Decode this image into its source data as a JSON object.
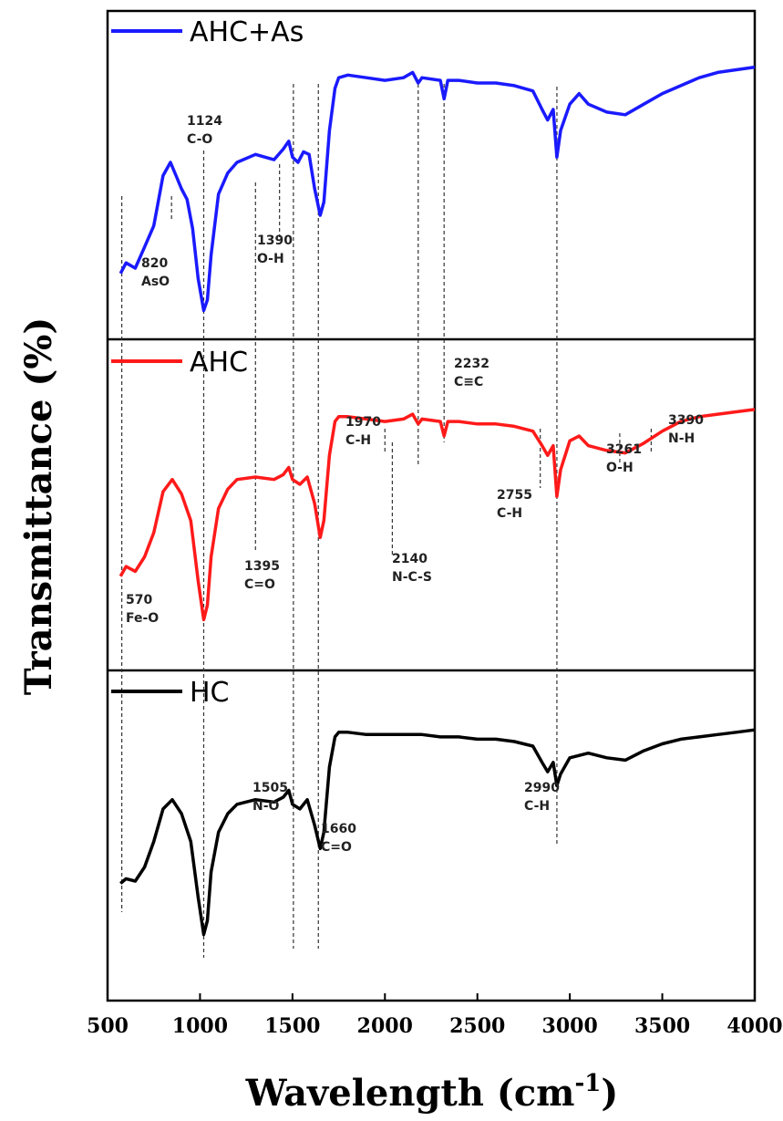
{
  "chart_data": {
    "type": "line",
    "xlabel": "Wavelength (cm",
    "xlabel_sup": "-1",
    "xlabel_end": ")",
    "ylabel": "Transmittance (%)",
    "xlim": [
      500,
      4000
    ],
    "xticks": [
      "500",
      "1000",
      "1500",
      "2000",
      "2500",
      "3000",
      "3500",
      "4000"
    ],
    "panels": [
      {
        "name": "AHC+As",
        "color": "#1a1aff",
        "points": [
          [
            570,
            0.18
          ],
          [
            600,
            0.22
          ],
          [
            650,
            0.2
          ],
          [
            700,
            0.28
          ],
          [
            750,
            0.36
          ],
          [
            800,
            0.55
          ],
          [
            840,
            0.6
          ],
          [
            870,
            0.55
          ],
          [
            900,
            0.5
          ],
          [
            930,
            0.46
          ],
          [
            960,
            0.35
          ],
          [
            990,
            0.16
          ],
          [
            1020,
            0.04
          ],
          [
            1040,
            0.08
          ],
          [
            1060,
            0.25
          ],
          [
            1100,
            0.48
          ],
          [
            1150,
            0.56
          ],
          [
            1200,
            0.6
          ],
          [
            1300,
            0.63
          ],
          [
            1350,
            0.62
          ],
          [
            1400,
            0.61
          ],
          [
            1450,
            0.65
          ],
          [
            1480,
            0.68
          ],
          [
            1500,
            0.62
          ],
          [
            1530,
            0.6
          ],
          [
            1560,
            0.64
          ],
          [
            1590,
            0.63
          ],
          [
            1620,
            0.5
          ],
          [
            1650,
            0.4
          ],
          [
            1670,
            0.45
          ],
          [
            1700,
            0.72
          ],
          [
            1730,
            0.88
          ],
          [
            1750,
            0.92
          ],
          [
            1800,
            0.93
          ],
          [
            1900,
            0.92
          ],
          [
            2000,
            0.91
          ],
          [
            2100,
            0.92
          ],
          [
            2150,
            0.94
          ],
          [
            2180,
            0.9
          ],
          [
            2200,
            0.92
          ],
          [
            2300,
            0.91
          ],
          [
            2320,
            0.84
          ],
          [
            2340,
            0.91
          ],
          [
            2400,
            0.91
          ],
          [
            2500,
            0.9
          ],
          [
            2600,
            0.9
          ],
          [
            2700,
            0.89
          ],
          [
            2800,
            0.87
          ],
          [
            2850,
            0.8
          ],
          [
            2880,
            0.76
          ],
          [
            2910,
            0.8
          ],
          [
            2930,
            0.62
          ],
          [
            2950,
            0.72
          ],
          [
            3000,
            0.82
          ],
          [
            3050,
            0.86
          ],
          [
            3100,
            0.82
          ],
          [
            3200,
            0.79
          ],
          [
            3300,
            0.78
          ],
          [
            3400,
            0.82
          ],
          [
            3500,
            0.86
          ],
          [
            3600,
            0.89
          ],
          [
            3700,
            0.92
          ],
          [
            3800,
            0.94
          ],
          [
            3900,
            0.95
          ],
          [
            4000,
            0.96
          ]
        ],
        "annotations": [
          {
            "text": "1124",
            "sub": "C-O"
          },
          {
            "text": "820",
            "sub": "AsO"
          },
          {
            "text": "1390",
            "sub": "O-H"
          }
        ]
      },
      {
        "name": "AHC",
        "color": "#ff1a1a",
        "points": [
          [
            570,
            0.22
          ],
          [
            600,
            0.26
          ],
          [
            650,
            0.24
          ],
          [
            700,
            0.3
          ],
          [
            750,
            0.4
          ],
          [
            800,
            0.57
          ],
          [
            850,
            0.62
          ],
          [
            900,
            0.56
          ],
          [
            950,
            0.45
          ],
          [
            990,
            0.2
          ],
          [
            1020,
            0.04
          ],
          [
            1040,
            0.1
          ],
          [
            1060,
            0.3
          ],
          [
            1100,
            0.5
          ],
          [
            1150,
            0.58
          ],
          [
            1200,
            0.62
          ],
          [
            1300,
            0.63
          ],
          [
            1400,
            0.62
          ],
          [
            1450,
            0.64
          ],
          [
            1480,
            0.67
          ],
          [
            1500,
            0.62
          ],
          [
            1540,
            0.6
          ],
          [
            1580,
            0.63
          ],
          [
            1620,
            0.52
          ],
          [
            1650,
            0.38
          ],
          [
            1670,
            0.45
          ],
          [
            1700,
            0.72
          ],
          [
            1730,
            0.86
          ],
          [
            1750,
            0.88
          ],
          [
            1800,
            0.88
          ],
          [
            1900,
            0.87
          ],
          [
            2000,
            0.86
          ],
          [
            2100,
            0.87
          ],
          [
            2150,
            0.89
          ],
          [
            2180,
            0.85
          ],
          [
            2200,
            0.87
          ],
          [
            2300,
            0.86
          ],
          [
            2320,
            0.8
          ],
          [
            2340,
            0.86
          ],
          [
            2400,
            0.86
          ],
          [
            2500,
            0.85
          ],
          [
            2600,
            0.85
          ],
          [
            2700,
            0.84
          ],
          [
            2800,
            0.82
          ],
          [
            2850,
            0.76
          ],
          [
            2880,
            0.72
          ],
          [
            2910,
            0.76
          ],
          [
            2930,
            0.55
          ],
          [
            2950,
            0.66
          ],
          [
            3000,
            0.78
          ],
          [
            3050,
            0.8
          ],
          [
            3100,
            0.76
          ],
          [
            3200,
            0.74
          ],
          [
            3300,
            0.73
          ],
          [
            3400,
            0.77
          ],
          [
            3500,
            0.82
          ],
          [
            3600,
            0.86
          ],
          [
            3700,
            0.88
          ],
          [
            3800,
            0.89
          ],
          [
            3900,
            0.9
          ],
          [
            4000,
            0.91
          ]
        ],
        "annotations": [
          {
            "text": "2232",
            "sub": "C≡C"
          },
          {
            "text": "1970",
            "sub": "C-H"
          },
          {
            "text": "3390",
            "sub": "N-H"
          },
          {
            "text": "3261",
            "sub": "O-H"
          },
          {
            "text": "2755",
            "sub": "C-H"
          },
          {
            "text": "1395",
            "sub": "C=O"
          },
          {
            "text": "2140",
            "sub": "N-C-S"
          },
          {
            "text": "570",
            "sub": "Fe-O"
          }
        ]
      },
      {
        "name": "HC",
        "color": "#000000",
        "points": [
          [
            570,
            0.3
          ],
          [
            600,
            0.32
          ],
          [
            650,
            0.31
          ],
          [
            700,
            0.37
          ],
          [
            750,
            0.48
          ],
          [
            800,
            0.62
          ],
          [
            850,
            0.66
          ],
          [
            900,
            0.6
          ],
          [
            950,
            0.48
          ],
          [
            990,
            0.24
          ],
          [
            1020,
            0.08
          ],
          [
            1040,
            0.14
          ],
          [
            1060,
            0.35
          ],
          [
            1100,
            0.52
          ],
          [
            1150,
            0.6
          ],
          [
            1200,
            0.64
          ],
          [
            1300,
            0.66
          ],
          [
            1400,
            0.65
          ],
          [
            1450,
            0.67
          ],
          [
            1480,
            0.7
          ],
          [
            1500,
            0.64
          ],
          [
            1540,
            0.62
          ],
          [
            1580,
            0.66
          ],
          [
            1620,
            0.55
          ],
          [
            1650,
            0.45
          ],
          [
            1670,
            0.52
          ],
          [
            1700,
            0.8
          ],
          [
            1730,
            0.93
          ],
          [
            1750,
            0.95
          ],
          [
            1800,
            0.95
          ],
          [
            1900,
            0.94
          ],
          [
            2000,
            0.94
          ],
          [
            2100,
            0.94
          ],
          [
            2200,
            0.94
          ],
          [
            2300,
            0.93
          ],
          [
            2400,
            0.93
          ],
          [
            2500,
            0.92
          ],
          [
            2600,
            0.92
          ],
          [
            2700,
            0.91
          ],
          [
            2800,
            0.89
          ],
          [
            2850,
            0.82
          ],
          [
            2880,
            0.78
          ],
          [
            2910,
            0.82
          ],
          [
            2930,
            0.72
          ],
          [
            2950,
            0.77
          ],
          [
            3000,
            0.84
          ],
          [
            3100,
            0.86
          ],
          [
            3200,
            0.84
          ],
          [
            3300,
            0.83
          ],
          [
            3400,
            0.87
          ],
          [
            3500,
            0.9
          ],
          [
            3600,
            0.92
          ],
          [
            3700,
            0.93
          ],
          [
            3800,
            0.94
          ],
          [
            3900,
            0.95
          ],
          [
            4000,
            0.96
          ]
        ],
        "annotations": [
          {
            "text": "1505",
            "sub": "N-O"
          },
          {
            "text": "1660",
            "sub": "C=O"
          },
          {
            "text": "2990",
            "sub": "C-H"
          }
        ]
      }
    ]
  }
}
